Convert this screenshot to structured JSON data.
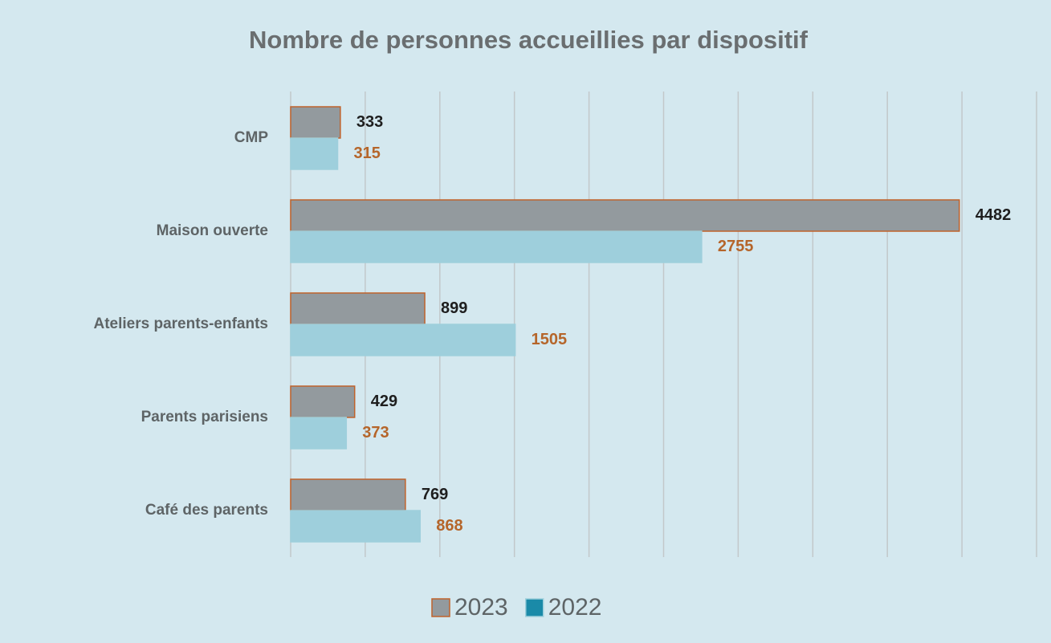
{
  "chart_data": {
    "type": "bar",
    "orientation": "horizontal",
    "title": "Nombre de personnes accueillies par dispositif",
    "categories": [
      "CMP",
      "Maison ouverte",
      "Ateliers parents-enfants",
      "Parents parisiens",
      "Café des parents"
    ],
    "series": [
      {
        "name": "2023",
        "color": "#939a9e",
        "edge_color": "#c0622b",
        "legend_color": "#939a9e",
        "label_color": "#1e1e1e",
        "values": [
          333,
          4482,
          899,
          429,
          769
        ]
      },
      {
        "name": "2022",
        "color": "#9ecfdc",
        "edge_color": "#9ecfdc",
        "legend_color": "#1a8aa8",
        "label_color": "#b5652a",
        "values": [
          315,
          2755,
          1505,
          373,
          868
        ]
      }
    ],
    "xlim": [
      0,
      5000
    ],
    "xticks": [
      0,
      500,
      1000,
      1500,
      2000,
      2500,
      3000,
      3500,
      4000,
      4500,
      5000
    ],
    "grid": true,
    "legend": "bottom"
  }
}
